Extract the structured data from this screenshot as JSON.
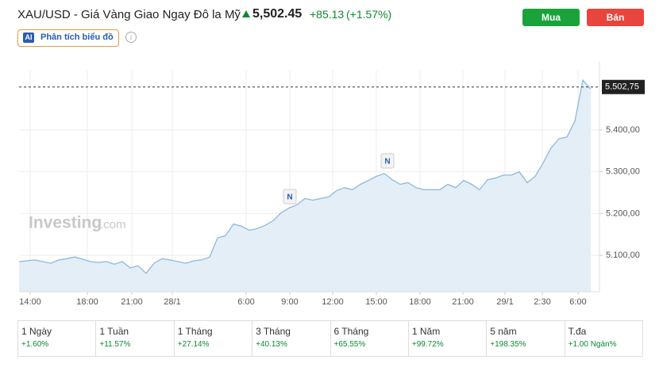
{
  "header": {
    "title": "XAU/USD - Giá Vàng Giao Ngay Đô la Mỹ",
    "price": "5,502.45",
    "change": "+85.13",
    "change_percent": "(+1.57%)",
    "ai_badge": "AI",
    "ai_button": "Phân tích biểu đồ",
    "info": "i"
  },
  "buttons": {
    "buy": "Mua",
    "sell": "Bán"
  },
  "watermark": {
    "brand": "Investing",
    "suffix": ".com"
  },
  "chart_data": {
    "type": "area",
    "values": [
      5085,
      5087,
      5089,
      5085,
      5081,
      5089,
      5092,
      5096,
      5091,
      5085,
      5083,
      5085,
      5079,
      5085,
      5070,
      5075,
      5057,
      5081,
      5092,
      5089,
      5085,
      5081,
      5087,
      5089,
      5096,
      5142,
      5147,
      5175,
      5170,
      5160,
      5164,
      5172,
      5183,
      5202,
      5213,
      5221,
      5236,
      5232,
      5236,
      5240,
      5255,
      5262,
      5257,
      5270,
      5279,
      5289,
      5296,
      5281,
      5270,
      5274,
      5262,
      5257,
      5257,
      5257,
      5270,
      5262,
      5279,
      5270,
      5257,
      5281,
      5285,
      5292,
      5292,
      5300,
      5274,
      5289,
      5321,
      5357,
      5379,
      5383,
      5421,
      5519,
      5498
    ],
    "color": "#8cb8e0",
    "fill": "#e4eef7",
    "xlim": [
      0,
      72
    ],
    "xticks": [
      {
        "value": 1.4,
        "label": "14:00"
      },
      {
        "value": 8.6,
        "label": "18:00"
      },
      {
        "value": 14.2,
        "label": "21:00"
      },
      {
        "value": 19.3,
        "label": "28/1"
      },
      {
        "value": 28.6,
        "label": "6:00"
      },
      {
        "value": 34.1,
        "label": "9:00"
      },
      {
        "value": 39.5,
        "label": "12:00"
      },
      {
        "value": 45,
        "label": "15:00"
      },
      {
        "value": 50.5,
        "label": "18:00"
      },
      {
        "value": 55.9,
        "label": "21:00"
      },
      {
        "value": 61.2,
        "label": "29/1"
      },
      {
        "value": 65.9,
        "label": "2:30"
      },
      {
        "value": 70.4,
        "label": "6:00"
      }
    ],
    "ylim": [
      5013,
      5544
    ],
    "yticks": [
      {
        "value": 5100,
        "label": "5.100,00"
      },
      {
        "value": 5200,
        "label": "5.200,00"
      },
      {
        "value": 5300,
        "label": "5.300,00"
      },
      {
        "value": 5400,
        "label": "5.400,00"
      }
    ],
    "last_price": {
      "value": 5502.75,
      "label": "5.502,75"
    },
    "news_markers": [
      "N",
      "N"
    ],
    "grid": true
  },
  "periods": [
    {
      "label": "1 Ngày",
      "change": "+1.60%"
    },
    {
      "label": "1 Tuần",
      "change": "+11.57%"
    },
    {
      "label": "1 Tháng",
      "change": "+27.14%"
    },
    {
      "label": "3 Tháng",
      "change": "+40.13%"
    },
    {
      "label": "6 Tháng",
      "change": "+65.55%"
    },
    {
      "label": "1 Năm",
      "change": "+99.72%"
    },
    {
      "label": "5 năm",
      "change": "+198.35%"
    },
    {
      "label": "T.đa",
      "change": "+1.00 Ngàn%"
    }
  ]
}
